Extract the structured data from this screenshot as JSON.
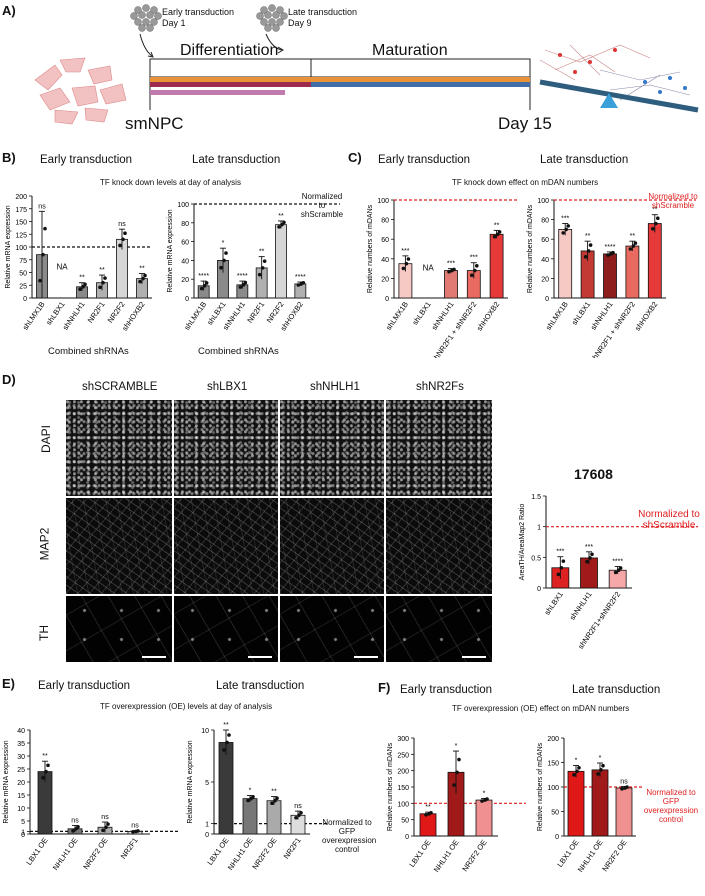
{
  "panel_a": {
    "label": "A)",
    "early_transduction": "Early transduction",
    "early_day": "Day 1",
    "late_transduction": "Late transduction",
    "late_day": "Day 9",
    "differentiation": "Differentiation",
    "maturation": "Maturation",
    "start": "smNPC",
    "end": "Day 15",
    "colors": {
      "orange": "#e8923a",
      "maroon": "#9c2b4e",
      "purple": "#c07ab0",
      "blue": "#3f6ea8",
      "seesaw": "#2f5d7e",
      "seesaw_base": "#3aa0d8"
    },
    "icon": "cell-cluster-icon"
  },
  "panel_b": {
    "label": "B)",
    "early_title": "Early transduction",
    "late_title": "Late transduction",
    "subtitle": "TF knock down levels at day of analysis",
    "normalized_note": "Normalized to shScramble",
    "combined_label": "Combined shRNAs"
  },
  "panel_c": {
    "label": "C)",
    "early_title": "Early transduction",
    "late_title": "Late transduction",
    "subtitle": "TF knock down effect on mDAN numbers",
    "normalized_note": "Normalized to shScramble"
  },
  "panel_d": {
    "label": "D)",
    "columns": [
      "shSCRAMBLE",
      "shLBX1",
      "shNHLH1",
      "shNR2Fs"
    ],
    "rows": [
      "DAPI",
      "MAP2",
      "TH"
    ],
    "chart_title": "17608",
    "normalized_note": "Normalized to shScramble"
  },
  "panel_e": {
    "label": "E)",
    "early_title": "Early transduction",
    "late_title": "Late transduction",
    "subtitle": "TF overexpression (OE) levels at day of analysis",
    "normalized_note": "Normalized to GFP overexpression control"
  },
  "panel_f": {
    "label": "F)",
    "early_title": "Early transduction",
    "late_title": "Late transduction",
    "subtitle": "TF overexpression (OE) effect on mDAN numbers",
    "normalized_note": "Normalized to GFP overexpression control"
  },
  "chart_data": [
    {
      "id": "b_early",
      "type": "bar",
      "ylabel": "Relative mRNA expression",
      "ylim": [
        0,
        200
      ],
      "yticks": [
        0,
        25,
        50,
        75,
        100,
        125,
        150,
        175,
        200
      ],
      "refline": 100,
      "categories": [
        "shLMX1B",
        "shLBX1",
        "shNHLH1",
        "NR2F1",
        "NR2F2",
        "shHOXB2"
      ],
      "values": [
        85,
        null,
        22,
        30,
        115,
        38
      ],
      "errors": [
        85,
        null,
        8,
        15,
        20,
        10
      ],
      "sig": [
        "ns",
        "NA",
        "**",
        "**",
        "ns",
        "**"
      ],
      "colors": [
        "#8a8a8a",
        "#8a8a8a",
        "#8a8a8a",
        "#b0b0b0",
        "#d6d6d6",
        "#b0b0b0"
      ]
    },
    {
      "id": "b_late",
      "type": "bar",
      "ylabel": "Relative mRNA expression",
      "ylim": [
        0,
        100
      ],
      "yticks": [
        0,
        20,
        40,
        60,
        80,
        100
      ],
      "refline": 100,
      "categories": [
        "shLMX1B",
        "shLBX1",
        "shNHLH1",
        "NR2F1",
        "NR2F2",
        "shHOXB2"
      ],
      "values": [
        13,
        40,
        14,
        32,
        78,
        15
      ],
      "errors": [
        5,
        13,
        4,
        12,
        4,
        2
      ],
      "sig": [
        "****",
        "*",
        "****",
        "**",
        "**",
        "****"
      ],
      "colors": [
        "#8a8a8a",
        "#8a8a8a",
        "#8a8a8a",
        "#b0b0b0",
        "#d6d6d6",
        "#b0b0b0"
      ]
    },
    {
      "id": "c_early",
      "type": "bar",
      "ylabel": "Relative numbers of mDANs",
      "ylim": [
        0,
        100
      ],
      "yticks": [
        0,
        20,
        40,
        60,
        80,
        100
      ],
      "refline": 100,
      "categories": [
        "shLMX1B",
        "shLBX1",
        "shNHLH1",
        "shNR2F1 + shNR2F2",
        "shHOXB2"
      ],
      "values": [
        35,
        null,
        28,
        28,
        65
      ],
      "errors": [
        8,
        null,
        2,
        8,
        4
      ],
      "sig": [
        "***",
        "NA",
        "***",
        "***",
        "**"
      ],
      "colors": [
        "#f6c9c4",
        "#f6c9c4",
        "#e07a72",
        "#e86a60",
        "#e5393a"
      ]
    },
    {
      "id": "c_late",
      "type": "bar",
      "ylabel": "Relative numbers of mDANs",
      "ylim": [
        0,
        100
      ],
      "yticks": [
        0,
        20,
        40,
        60,
        80,
        100
      ],
      "refline": 100,
      "categories": [
        "shLMX1B",
        "shLBX1",
        "shNHLH1",
        "shNR2F1 + shNR2F2",
        "shHOXB2"
      ],
      "values": [
        70,
        48,
        45,
        53,
        76
      ],
      "errors": [
        6,
        10,
        2,
        5,
        9
      ],
      "sig": [
        "***",
        "**",
        "****",
        "**",
        "**"
      ],
      "colors": [
        "#f6c9c4",
        "#c23a33",
        "#8e1d1d",
        "#e86a60",
        "#e5393a"
      ]
    },
    {
      "id": "d_ratio",
      "type": "bar",
      "title": "17608",
      "ylabel": "AreaTH/AreaMap2 Ratio",
      "ylim": [
        0,
        1.5
      ],
      "yticks": [
        0.0,
        0.5,
        1.0,
        1.5
      ],
      "refline": 1.0,
      "categories": [
        "shLBX1",
        "shNHLH1",
        "shNR2F1+shNR2F2"
      ],
      "values": [
        0.33,
        0.49,
        0.29
      ],
      "errors": [
        0.18,
        0.1,
        0.06
      ],
      "sig": [
        "***",
        "***",
        "****"
      ],
      "colors": [
        "#dd2222",
        "#a01a1a",
        "#f6a7a7"
      ]
    },
    {
      "id": "e_early",
      "type": "bar",
      "ylabel": "Relative mRNA expression",
      "ylim": [
        0,
        40
      ],
      "yticks": [
        0,
        1,
        5,
        10,
        15,
        20,
        25,
        30,
        35,
        40
      ],
      "refline": 1,
      "categories": [
        "LBX1 OE",
        "NHLH1 OE",
        "NR2F2 OE",
        "NR2F1"
      ],
      "values": [
        24,
        2,
        2.6,
        1
      ],
      "errors": [
        4,
        1.3,
        2,
        0.3
      ],
      "sig": [
        "**",
        "ns",
        "ns",
        "ns"
      ],
      "colors": [
        "#3a3a3a",
        "#777777",
        "#aaaaaa",
        "#dddddd"
      ]
    },
    {
      "id": "e_late",
      "type": "bar",
      "ylabel": "Relative mRNA expression",
      "ylim": [
        0,
        10
      ],
      "yticks": [
        0,
        1,
        5,
        10
      ],
      "refline": 1,
      "categories": [
        "LBX1 OE",
        "NHLH1 OE",
        "NR2F2 OE",
        "NR2F1"
      ],
      "values": [
        8.8,
        3.4,
        3.2,
        1.8
      ],
      "errors": [
        1.2,
        0.3,
        0.4,
        0.4
      ],
      "sig": [
        "**",
        "*",
        "**",
        "ns"
      ],
      "colors": [
        "#3a3a3a",
        "#777777",
        "#aaaaaa",
        "#dddddd"
      ]
    },
    {
      "id": "f_early",
      "type": "bar",
      "ylabel": "Relative numbers of mDANs",
      "ylim": [
        0,
        300
      ],
      "yticks": [
        0,
        50,
        100,
        150,
        200,
        250,
        300
      ],
      "refline": 100,
      "categories": [
        "LBX1 OE",
        "NHLH1 OE",
        "NR2F2 OE"
      ],
      "values": [
        68,
        195,
        110
      ],
      "errors": [
        5,
        65,
        5
      ],
      "sig": [
        "**",
        "*",
        "*"
      ],
      "colors": [
        "#e01818",
        "#a01a1a",
        "#f09090"
      ]
    },
    {
      "id": "f_late",
      "type": "bar",
      "ylabel": "Relative numbers of mDANs",
      "ylim": [
        0,
        200
      ],
      "yticks": [
        0,
        50,
        100,
        150,
        200
      ],
      "refline": 100,
      "categories": [
        "LBX1 OE",
        "NHLH1 OE",
        "NR2F2 OE"
      ],
      "values": [
        132,
        135,
        98
      ],
      "errors": [
        12,
        14,
        3
      ],
      "sig": [
        "*",
        "*",
        "ns"
      ],
      "colors": [
        "#e01818",
        "#a01a1a",
        "#f09090"
      ]
    }
  ]
}
